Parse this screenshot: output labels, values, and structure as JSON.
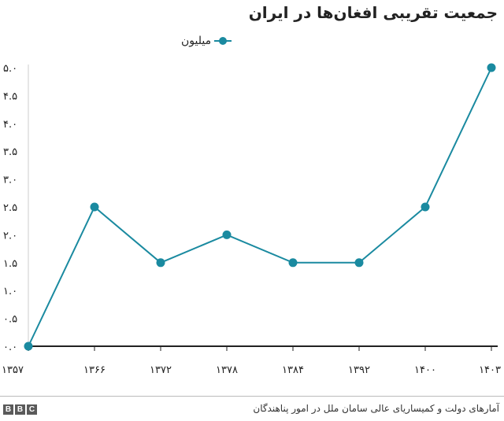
{
  "header": {
    "title": "جمعیت تقریبی افغان‌ها در ایران"
  },
  "footer": {
    "source": "آمارهای دولت و کمیساریای عالی سامان ملل در امور پناهندگان",
    "brand": [
      "B",
      "B",
      "C"
    ]
  },
  "colors": {
    "series": "#1a8aa0",
    "axis": "#222222",
    "grid": "#dddddd"
  },
  "chart_data": {
    "type": "line",
    "title": "جمعیت تقریبی افغان‌ها در ایران",
    "x": [
      "۱۳۵۷",
      "۱۳۶۶",
      "۱۳۷۲",
      "۱۳۷۸",
      "۱۳۸۴",
      "۱۳۹۲",
      "۱۴۰۰",
      "۱۴۰۳"
    ],
    "series": [
      {
        "name": "میلیون",
        "values": [
          0.0,
          2.5,
          1.5,
          2.0,
          1.5,
          1.5,
          2.5,
          5.0
        ]
      }
    ],
    "yticks": [
      "۰.۰",
      "۰.۵",
      "۱.۰",
      "۱.۵",
      "۲.۰",
      "۲.۵",
      "۳.۰",
      "۳.۵",
      "۴.۰",
      "۴.۵",
      "۵.۰"
    ],
    "ylim": [
      0,
      5
    ],
    "legend": "top",
    "grid": false
  }
}
